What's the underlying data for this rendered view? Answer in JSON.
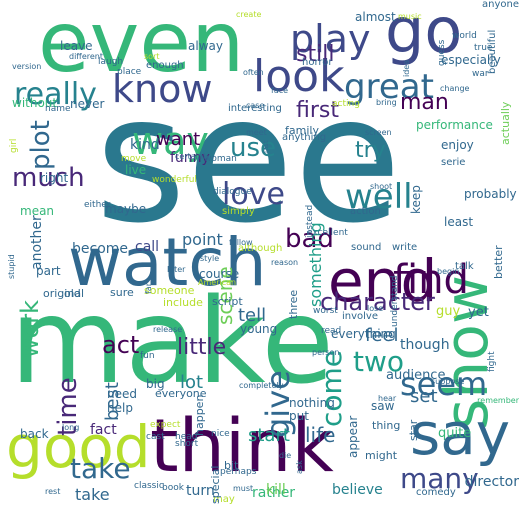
{
  "cloud": {
    "palette": {
      "yellow_green": "#b5de2b",
      "green": "#35b779",
      "light_green": "#6ece58",
      "teal": "#26828e",
      "dark_teal": "#1f9e89",
      "blue": "#31688e",
      "indigo": "#3e4989",
      "purple": "#482878",
      "dark_purple": "#440154",
      "pale_yellow": "#fde725"
    },
    "words": [
      {
        "text": "see",
        "color": "#2a788e"
      },
      {
        "text": "make",
        "color": "#35b779"
      },
      {
        "text": "even",
        "color": "#35b779"
      },
      {
        "text": "think",
        "color": "#440154"
      },
      {
        "text": "watch",
        "color": "#31688e"
      },
      {
        "text": "good",
        "color": "#b5de2b"
      },
      {
        "text": "go",
        "color": "#3e4989"
      },
      {
        "text": "show",
        "color": "#35b779"
      },
      {
        "text": "end",
        "color": "#440154"
      },
      {
        "text": "say",
        "color": "#31688e"
      },
      {
        "text": "look",
        "color": "#3e4989"
      },
      {
        "text": "know",
        "color": "#3e4989"
      },
      {
        "text": "play",
        "color": "#3e4989"
      },
      {
        "text": "really",
        "color": "#26828e"
      },
      {
        "text": "great",
        "color": "#31688e"
      },
      {
        "text": "find",
        "color": "#440154"
      },
      {
        "text": "way",
        "color": "#35b779"
      },
      {
        "text": "much",
        "color": "#482878"
      },
      {
        "text": "love",
        "color": "#3e4989"
      },
      {
        "text": "well",
        "color": "#26828e"
      },
      {
        "text": "use",
        "color": "#26828e"
      },
      {
        "text": "give",
        "color": "#31688e"
      },
      {
        "text": "seem",
        "color": "#31688e"
      },
      {
        "text": "two",
        "color": "#1f9e89"
      },
      {
        "text": "take",
        "color": "#31688e"
      },
      {
        "text": "many",
        "color": "#3e4989"
      },
      {
        "text": "bad",
        "color": "#440154"
      },
      {
        "text": "character",
        "color": "#482878"
      },
      {
        "text": "come",
        "color": "#1f9e89"
      },
      {
        "text": "time",
        "color": "#482878"
      },
      {
        "text": "work",
        "color": "#35b779"
      },
      {
        "text": "plot",
        "color": "#31688e"
      },
      {
        "text": "still",
        "color": "#482878"
      },
      {
        "text": "first",
        "color": "#482878"
      },
      {
        "text": "man",
        "color": "#440154"
      },
      {
        "text": "try",
        "color": "#26828e"
      },
      {
        "text": "want",
        "color": "#440154"
      },
      {
        "text": "act",
        "color": "#440154"
      },
      {
        "text": "little",
        "color": "#482878"
      },
      {
        "text": "tell",
        "color": "#31688e"
      },
      {
        "text": "start",
        "color": "#1f9e89"
      },
      {
        "text": "life",
        "color": "#31688e"
      },
      {
        "text": "best",
        "color": "#31688e"
      },
      {
        "text": "feel",
        "color": "#31688e"
      },
      {
        "text": "lot",
        "color": "#26828e"
      },
      {
        "text": "set",
        "color": "#31688e"
      },
      {
        "text": "scene",
        "color": "#6ece58"
      },
      {
        "text": "something",
        "color": "#1f9e89"
      },
      {
        "text": "another",
        "color": "#31688e"
      },
      {
        "text": "funny",
        "color": "#482878"
      },
      {
        "text": "kind",
        "color": "#31688e"
      },
      {
        "text": "point",
        "color": "#31688e"
      },
      {
        "text": "call",
        "color": "#3e4989"
      },
      {
        "text": "become",
        "color": "#31688e"
      },
      {
        "text": "part",
        "color": "#31688e"
      },
      {
        "text": "fact",
        "color": "#482878"
      },
      {
        "text": "take",
        "color": "#31688e"
      },
      {
        "text": "turn",
        "color": "#31688e"
      },
      {
        "text": "rather",
        "color": "#35b779"
      },
      {
        "text": "kill",
        "color": "#6ece58"
      },
      {
        "text": "believe",
        "color": "#26828e"
      },
      {
        "text": "director",
        "color": "#31688e"
      },
      {
        "text": "quite",
        "color": "#35b779"
      },
      {
        "text": "audience",
        "color": "#31688e"
      },
      {
        "text": "though",
        "color": "#31688e"
      },
      {
        "text": "alway",
        "color": "#31688e"
      },
      {
        "text": "leave",
        "color": "#31688e"
      },
      {
        "text": "almost",
        "color": "#31688e"
      },
      {
        "text": "especially",
        "color": "#31688e"
      },
      {
        "text": "actually",
        "color": "#6ece58"
      },
      {
        "text": "performance",
        "color": "#35b779"
      },
      {
        "text": "enjoy",
        "color": "#31688e"
      },
      {
        "text": "keep",
        "color": "#31688e"
      },
      {
        "text": "probably",
        "color": "#31688e"
      },
      {
        "text": "least",
        "color": "#31688e"
      },
      {
        "text": "better",
        "color": "#31688e"
      },
      {
        "text": "without",
        "color": "#35b779"
      },
      {
        "text": "never",
        "color": "#31688e"
      },
      {
        "text": "live",
        "color": "#35b779"
      },
      {
        "text": "right",
        "color": "#31688e"
      },
      {
        "text": "maybe",
        "color": "#31688e"
      },
      {
        "text": "mean",
        "color": "#35b779"
      },
      {
        "text": "back",
        "color": "#31688e"
      },
      {
        "text": "need",
        "color": "#31688e"
      },
      {
        "text": "help",
        "color": "#31688e"
      },
      {
        "text": "big",
        "color": "#31688e"
      },
      {
        "text": "happen",
        "color": "#31688e"
      },
      {
        "text": "everything",
        "color": "#31688e"
      },
      {
        "text": "appear",
        "color": "#31688e"
      },
      {
        "text": "nothing",
        "color": "#31688e"
      },
      {
        "text": "put",
        "color": "#31688e"
      },
      {
        "text": "saw",
        "color": "#31688e"
      },
      {
        "text": "star",
        "color": "#31688e"
      },
      {
        "text": "thing",
        "color": "#31688e"
      },
      {
        "text": "yet",
        "color": "#31688e"
      },
      {
        "text": "guy",
        "color": "#b5de2b"
      },
      {
        "text": "three",
        "color": "#31688e"
      },
      {
        "text": "course",
        "color": "#31688e"
      },
      {
        "text": "young",
        "color": "#31688e"
      },
      {
        "text": "script",
        "color": "#31688e"
      },
      {
        "text": "include",
        "color": "#b5de2b"
      },
      {
        "text": "someone",
        "color": "#b5de2b"
      },
      {
        "text": "old",
        "color": "#31688e"
      },
      {
        "text": "original",
        "color": "#31688e"
      },
      {
        "text": "sure",
        "color": "#31688e"
      },
      {
        "text": "bit",
        "color": "#31688e"
      },
      {
        "text": "may",
        "color": "#b5de2b"
      },
      {
        "text": "might",
        "color": "#31688e"
      },
      {
        "text": "special",
        "color": "#31688e"
      },
      {
        "text": "everyone",
        "color": "#31688e"
      },
      {
        "text": "comedy",
        "color": "#31688e"
      },
      {
        "text": "family",
        "color": "#31688e"
      },
      {
        "text": "instead",
        "color": "#31688e"
      },
      {
        "text": "anything",
        "color": "#31688e"
      },
      {
        "text": "horror",
        "color": "#31688e"
      },
      {
        "text": "enough",
        "color": "#31688e"
      },
      {
        "text": "simply",
        "color": "#b5de2b"
      },
      {
        "text": "although",
        "color": "#b5de2b"
      },
      {
        "text": "sound",
        "color": "#31688e"
      },
      {
        "text": "write",
        "color": "#31688e"
      },
      {
        "text": "talk",
        "color": "#31688e"
      },
      {
        "text": "action",
        "color": "#31688e"
      },
      {
        "text": "serie",
        "color": "#31688e"
      },
      {
        "text": "interesting",
        "color": "#31688e"
      },
      {
        "text": "excellent",
        "color": "#31688e"
      },
      {
        "text": "dialogue",
        "color": "#31688e"
      },
      {
        "text": "fun",
        "color": "#31688e"
      },
      {
        "text": "expect",
        "color": "#b5de2b"
      },
      {
        "text": "cast",
        "color": "#31688e"
      },
      {
        "text": "head",
        "color": "#31688e"
      },
      {
        "text": "nice",
        "color": "#31688e"
      },
      {
        "text": "short",
        "color": "#31688e"
      },
      {
        "text": "perhaps",
        "color": "#31688e"
      },
      {
        "text": "book",
        "color": "#31688e"
      },
      {
        "text": "classic",
        "color": "#31688e"
      },
      {
        "text": "must",
        "color": "#31688e"
      },
      {
        "text": "ask",
        "color": "#31688e"
      },
      {
        "text": "completely",
        "color": "#31688e"
      },
      {
        "text": "person",
        "color": "#31688e"
      },
      {
        "text": "involve",
        "color": "#31688e"
      },
      {
        "text": "worst",
        "color": "#31688e"
      },
      {
        "text": "read",
        "color": "#31688e"
      },
      {
        "text": "lose",
        "color": "#31688e"
      },
      {
        "text": "beautiful",
        "color": "#31688e"
      },
      {
        "text": "world",
        "color": "#31688e"
      },
      {
        "text": "true",
        "color": "#31688e"
      },
      {
        "text": "anyone",
        "color": "#31688e"
      },
      {
        "text": "war",
        "color": "#31688e"
      },
      {
        "text": "guess",
        "color": "#31688e"
      },
      {
        "text": "idea",
        "color": "#31688e"
      },
      {
        "text": "music",
        "color": "#b5de2b"
      },
      {
        "text": "create",
        "color": "#b5de2b"
      },
      {
        "text": "sort",
        "color": "#b5de2b"
      },
      {
        "text": "laugh",
        "color": "#31688e"
      },
      {
        "text": "place",
        "color": "#31688e"
      },
      {
        "text": "often",
        "color": "#31688e"
      },
      {
        "text": "version",
        "color": "#31688e"
      },
      {
        "text": "face",
        "color": "#31688e"
      },
      {
        "text": "case",
        "color": "#31688e"
      },
      {
        "text": "acting",
        "color": "#b5de2b"
      },
      {
        "text": "bring",
        "color": "#31688e"
      },
      {
        "text": "change",
        "color": "#31688e"
      },
      {
        "text": "meet",
        "color": "#31688e"
      },
      {
        "text": "screen",
        "color": "#31688e"
      },
      {
        "text": "last",
        "color": "#31688e"
      },
      {
        "text": "certainly",
        "color": "#31688e"
      },
      {
        "text": "move",
        "color": "#b5de2b"
      },
      {
        "text": "woman",
        "color": "#31688e"
      },
      {
        "text": "wonderful",
        "color": "#b5de2b"
      },
      {
        "text": "girl",
        "color": "#b5de2b"
      },
      {
        "text": "name",
        "color": "#31688e"
      },
      {
        "text": "shoot",
        "color": "#31688e"
      },
      {
        "text": "either",
        "color": "#31688e"
      },
      {
        "text": "follow",
        "color": "#31688e"
      },
      {
        "text": "style",
        "color": "#31688e"
      },
      {
        "text": "American",
        "color": "#b5de2b"
      },
      {
        "text": "reason",
        "color": "#31688e"
      },
      {
        "text": "understand",
        "color": "#31688e"
      },
      {
        "text": "begin",
        "color": "#31688e"
      },
      {
        "text": "later",
        "color": "#31688e"
      },
      {
        "text": "far",
        "color": "#31688e"
      },
      {
        "text": "release",
        "color": "#31688e"
      },
      {
        "text": "stupid",
        "color": "#31688e"
      },
      {
        "text": "suppose",
        "color": "#31688e"
      },
      {
        "text": "hear",
        "color": "#31688e"
      },
      {
        "text": "fight",
        "color": "#31688e"
      },
      {
        "text": "remember",
        "color": "#35b779"
      },
      {
        "text": "rest",
        "color": "#31688e"
      },
      {
        "text": "long",
        "color": "#31688e"
      },
      {
        "text": "die",
        "color": "#31688e"
      },
      {
        "text": "different",
        "color": "#31688e"
      },
      {
        "text": "TV",
        "color": "#31688e"
      }
    ]
  }
}
